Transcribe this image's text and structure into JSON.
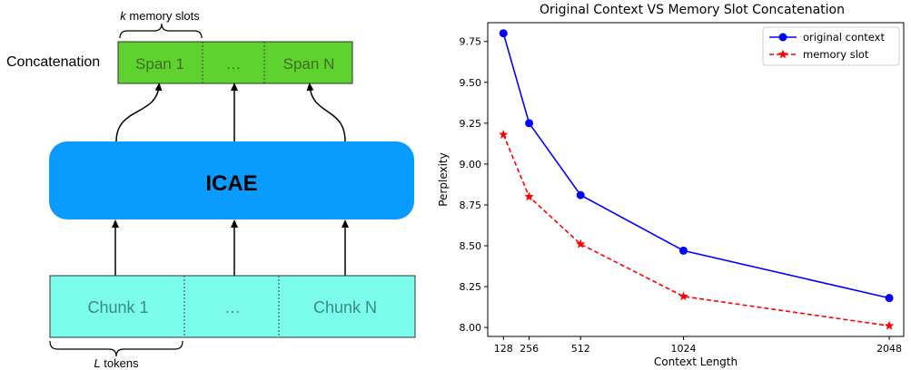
{
  "diagram": {
    "top_brace_label": "memory slots",
    "top_brace_italic": "k",
    "concat_label": "Concatenation",
    "spans": [
      "Span 1",
      "…",
      "Span N"
    ],
    "encoder_label": "ICAE",
    "chunks": [
      "Chunk 1",
      "…",
      "Chunk N"
    ],
    "bottom_brace_italic": "L",
    "bottom_brace_label": "tokens",
    "colors": {
      "span_fill": "#5ed22f",
      "encoder_fill": "#0a9bff",
      "chunk_fill": "#7cfcec"
    }
  },
  "chart_data": {
    "type": "line",
    "title": "Original Context VS Memory Slot Concatenation",
    "xlabel": "Context Length",
    "ylabel": "Perplexity",
    "x": [
      128,
      256,
      512,
      1024,
      2048
    ],
    "xticks": [
      "128",
      "256",
      "512",
      "1024",
      "2048"
    ],
    "xlim": [
      50,
      2120
    ],
    "ylim": [
      7.945,
      9.865
    ],
    "yticks": [
      "8.00",
      "8.25",
      "8.50",
      "8.75",
      "9.00",
      "9.25",
      "9.50",
      "9.75"
    ],
    "grid": false,
    "legend_position": "top-right",
    "series": [
      {
        "name": "original context",
        "values": [
          9.8,
          9.25,
          8.81,
          8.47,
          8.18
        ],
        "color": "#0000ff",
        "marker": "circle",
        "line": "solid"
      },
      {
        "name": "memory slot",
        "values": [
          9.18,
          8.8,
          8.51,
          8.19,
          8.01
        ],
        "color": "#ff0000",
        "marker": "star",
        "line": "dashed"
      }
    ]
  }
}
